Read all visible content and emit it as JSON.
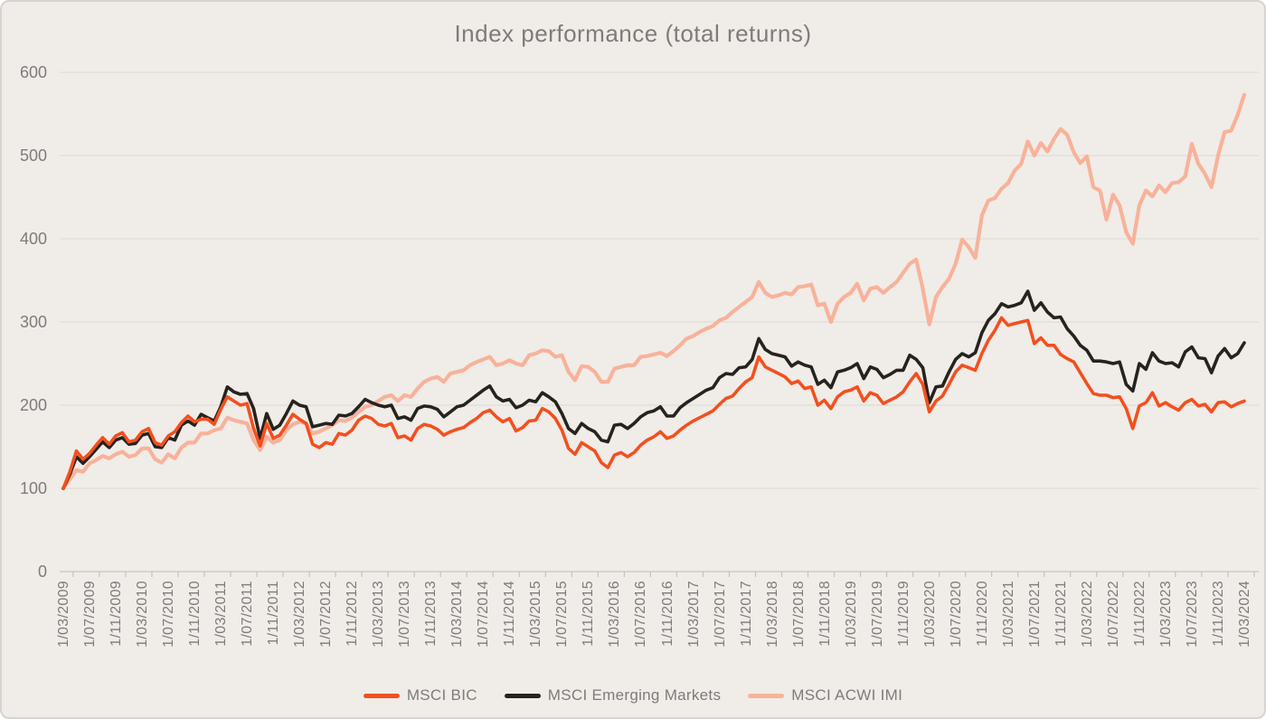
{
  "chart_data": {
    "type": "line",
    "title": "Index performance (total returns)",
    "xlabel": "",
    "ylabel": "",
    "ylim": [
      0,
      600
    ],
    "y_ticks": [
      0,
      100,
      200,
      300,
      400,
      500,
      600
    ],
    "grid": "horizontal",
    "legend_position": "bottom",
    "x_frequency": "monthly",
    "x_tick_labels": [
      "1/03/2009",
      "1/07/2009",
      "1/11/2009",
      "1/03/2010",
      "1/07/2010",
      "1/11/2010",
      "1/03/2011",
      "1/07/2011",
      "1/11/2011",
      "1/03/2012",
      "1/07/2012",
      "1/11/2012",
      "1/03/2013",
      "1/07/2013",
      "1/11/2013",
      "1/03/2014",
      "1/07/2014",
      "1/11/2014",
      "1/03/2015",
      "1/07/2015",
      "1/11/2015",
      "1/03/2016",
      "1/07/2016",
      "1/11/2016",
      "1/03/2017",
      "1/07/2017",
      "1/11/2017",
      "1/03/2018",
      "1/07/2018",
      "1/11/2018",
      "1/03/2019",
      "1/07/2019",
      "1/11/2019",
      "1/03/2020",
      "1/07/2020",
      "1/11/2020",
      "1/03/2021",
      "1/07/2021",
      "1/11/2021",
      "1/03/2022",
      "1/07/2022",
      "1/11/2022",
      "1/03/2023",
      "1/07/2023",
      "1/11/2023",
      "1/03/2024"
    ],
    "series": [
      {
        "name": "MSCI BIC",
        "color": "#F2501E",
        "line_width": 3.6,
        "values": [
          100,
          120,
          145,
          135,
          142,
          152,
          161,
          153,
          163,
          167,
          156,
          158,
          168,
          172,
          155,
          152,
          163,
          168,
          179,
          187,
          180,
          183,
          183,
          177,
          195,
          210,
          205,
          200,
          202,
          172,
          151,
          178,
          160,
          164,
          176,
          189,
          183,
          178,
          153,
          149,
          155,
          153,
          166,
          164,
          170,
          182,
          187,
          184,
          177,
          175,
          178,
          161,
          163,
          158,
          172,
          177,
          175,
          171,
          164,
          168,
          171,
          173,
          179,
          184,
          191,
          194,
          186,
          180,
          184,
          169,
          173,
          181,
          182,
          196,
          192,
          184,
          170,
          148,
          141,
          155,
          150,
          145,
          131,
          125,
          140,
          143,
          138,
          143,
          152,
          158,
          162,
          168,
          160,
          163,
          170,
          176,
          181,
          185,
          189,
          193,
          201,
          208,
          211,
          220,
          228,
          233,
          258,
          246,
          242,
          238,
          234,
          226,
          229,
          220,
          222,
          200,
          206,
          196,
          210,
          216,
          218,
          222,
          205,
          215,
          212,
          202,
          206,
          210,
          216,
          228,
          238,
          225,
          192,
          205,
          211,
          225,
          240,
          248,
          245,
          242,
          262,
          278,
          290,
          305,
          296,
          298,
          300,
          302,
          274,
          281,
          272,
          272,
          261,
          256,
          252,
          239,
          226,
          214,
          212,
          212,
          209,
          210,
          196,
          172,
          199,
          203,
          215,
          199,
          203,
          198,
          194,
          203,
          207,
          199,
          201,
          192,
          203,
          204,
          198,
          202,
          205
        ]
      },
      {
        "name": "MSCI Emerging Markets",
        "color": "#26231F",
        "line_width": 3.6,
        "values": [
          100,
          117,
          138,
          130,
          138,
          147,
          156,
          149,
          158,
          161,
          153,
          154,
          164,
          166,
          150,
          149,
          161,
          158,
          176,
          181,
          176,
          189,
          185,
          181,
          198,
          222,
          216,
          213,
          214,
          196,
          160,
          190,
          171,
          176,
          190,
          205,
          200,
          198,
          174,
          176,
          178,
          177,
          188,
          187,
          190,
          198,
          207,
          203,
          200,
          198,
          200,
          184,
          186,
          182,
          196,
          199,
          198,
          195,
          186,
          192,
          198,
          200,
          206,
          212,
          218,
          223,
          210,
          205,
          207,
          197,
          200,
          206,
          204,
          215,
          210,
          204,
          190,
          172,
          166,
          178,
          172,
          168,
          158,
          156,
          176,
          177,
          172,
          178,
          186,
          191,
          193,
          198,
          187,
          187,
          197,
          203,
          208,
          213,
          218,
          221,
          233,
          238,
          237,
          245,
          246,
          255,
          280,
          267,
          262,
          260,
          258,
          247,
          252,
          248,
          246,
          225,
          230,
          221,
          240,
          242,
          245,
          250,
          232,
          246,
          243,
          233,
          237,
          242,
          242,
          260,
          255,
          245,
          203,
          222,
          223,
          240,
          255,
          262,
          258,
          263,
          287,
          302,
          310,
          322,
          318,
          320,
          323,
          337,
          314,
          323,
          312,
          305,
          306,
          292,
          283,
          272,
          266,
          253,
          253,
          252,
          250,
          252,
          225,
          217,
          250,
          243,
          263,
          253,
          250,
          251,
          246,
          264,
          270,
          257,
          256,
          239,
          259,
          268,
          257,
          262,
          275
        ]
      },
      {
        "name": "MSCI ACWI IMI",
        "color": "#F8B29A",
        "line_width": 4.2,
        "values": [
          100,
          111,
          122,
          120,
          130,
          134,
          139,
          136,
          141,
          144,
          138,
          140,
          148,
          148,
          135,
          131,
          141,
          136,
          149,
          155,
          155,
          166,
          166,
          170,
          172,
          185,
          182,
          180,
          178,
          158,
          146,
          162,
          155,
          158,
          170,
          177,
          180,
          178,
          166,
          168,
          172,
          176,
          182,
          181,
          185,
          192,
          198,
          200,
          205,
          210,
          212,
          205,
          212,
          210,
          220,
          228,
          232,
          234,
          228,
          238,
          240,
          242,
          248,
          252,
          255,
          258,
          248,
          250,
          254,
          250,
          248,
          260,
          262,
          266,
          265,
          258,
          260,
          240,
          230,
          247,
          246,
          240,
          228,
          228,
          244,
          246,
          248,
          248,
          258,
          259,
          261,
          263,
          259,
          265,
          272,
          280,
          283,
          288,
          292,
          295,
          302,
          305,
          312,
          318,
          324,
          330,
          348,
          335,
          330,
          332,
          335,
          333,
          342,
          343,
          345,
          320,
          322,
          300,
          322,
          330,
          335,
          346,
          326,
          340,
          342,
          335,
          342,
          348,
          359,
          370,
          375,
          340,
          297,
          330,
          342,
          352,
          370,
          399,
          390,
          377,
          428,
          446,
          449,
          460,
          467,
          482,
          490,
          517,
          500,
          515,
          505,
          520,
          532,
          525,
          504,
          491,
          499,
          462,
          458,
          423,
          453,
          440,
          408,
          394,
          440,
          458,
          451,
          464,
          456,
          467,
          468,
          475,
          514,
          490,
          478,
          462,
          500,
          528,
          530,
          549,
          573
        ]
      }
    ],
    "colors": {
      "background": "#F0ECE8",
      "border": "#D8D3CE",
      "gridline": "#DFDBD7",
      "axis_line": "#C6C2BE",
      "text": "#7E7C79"
    }
  }
}
